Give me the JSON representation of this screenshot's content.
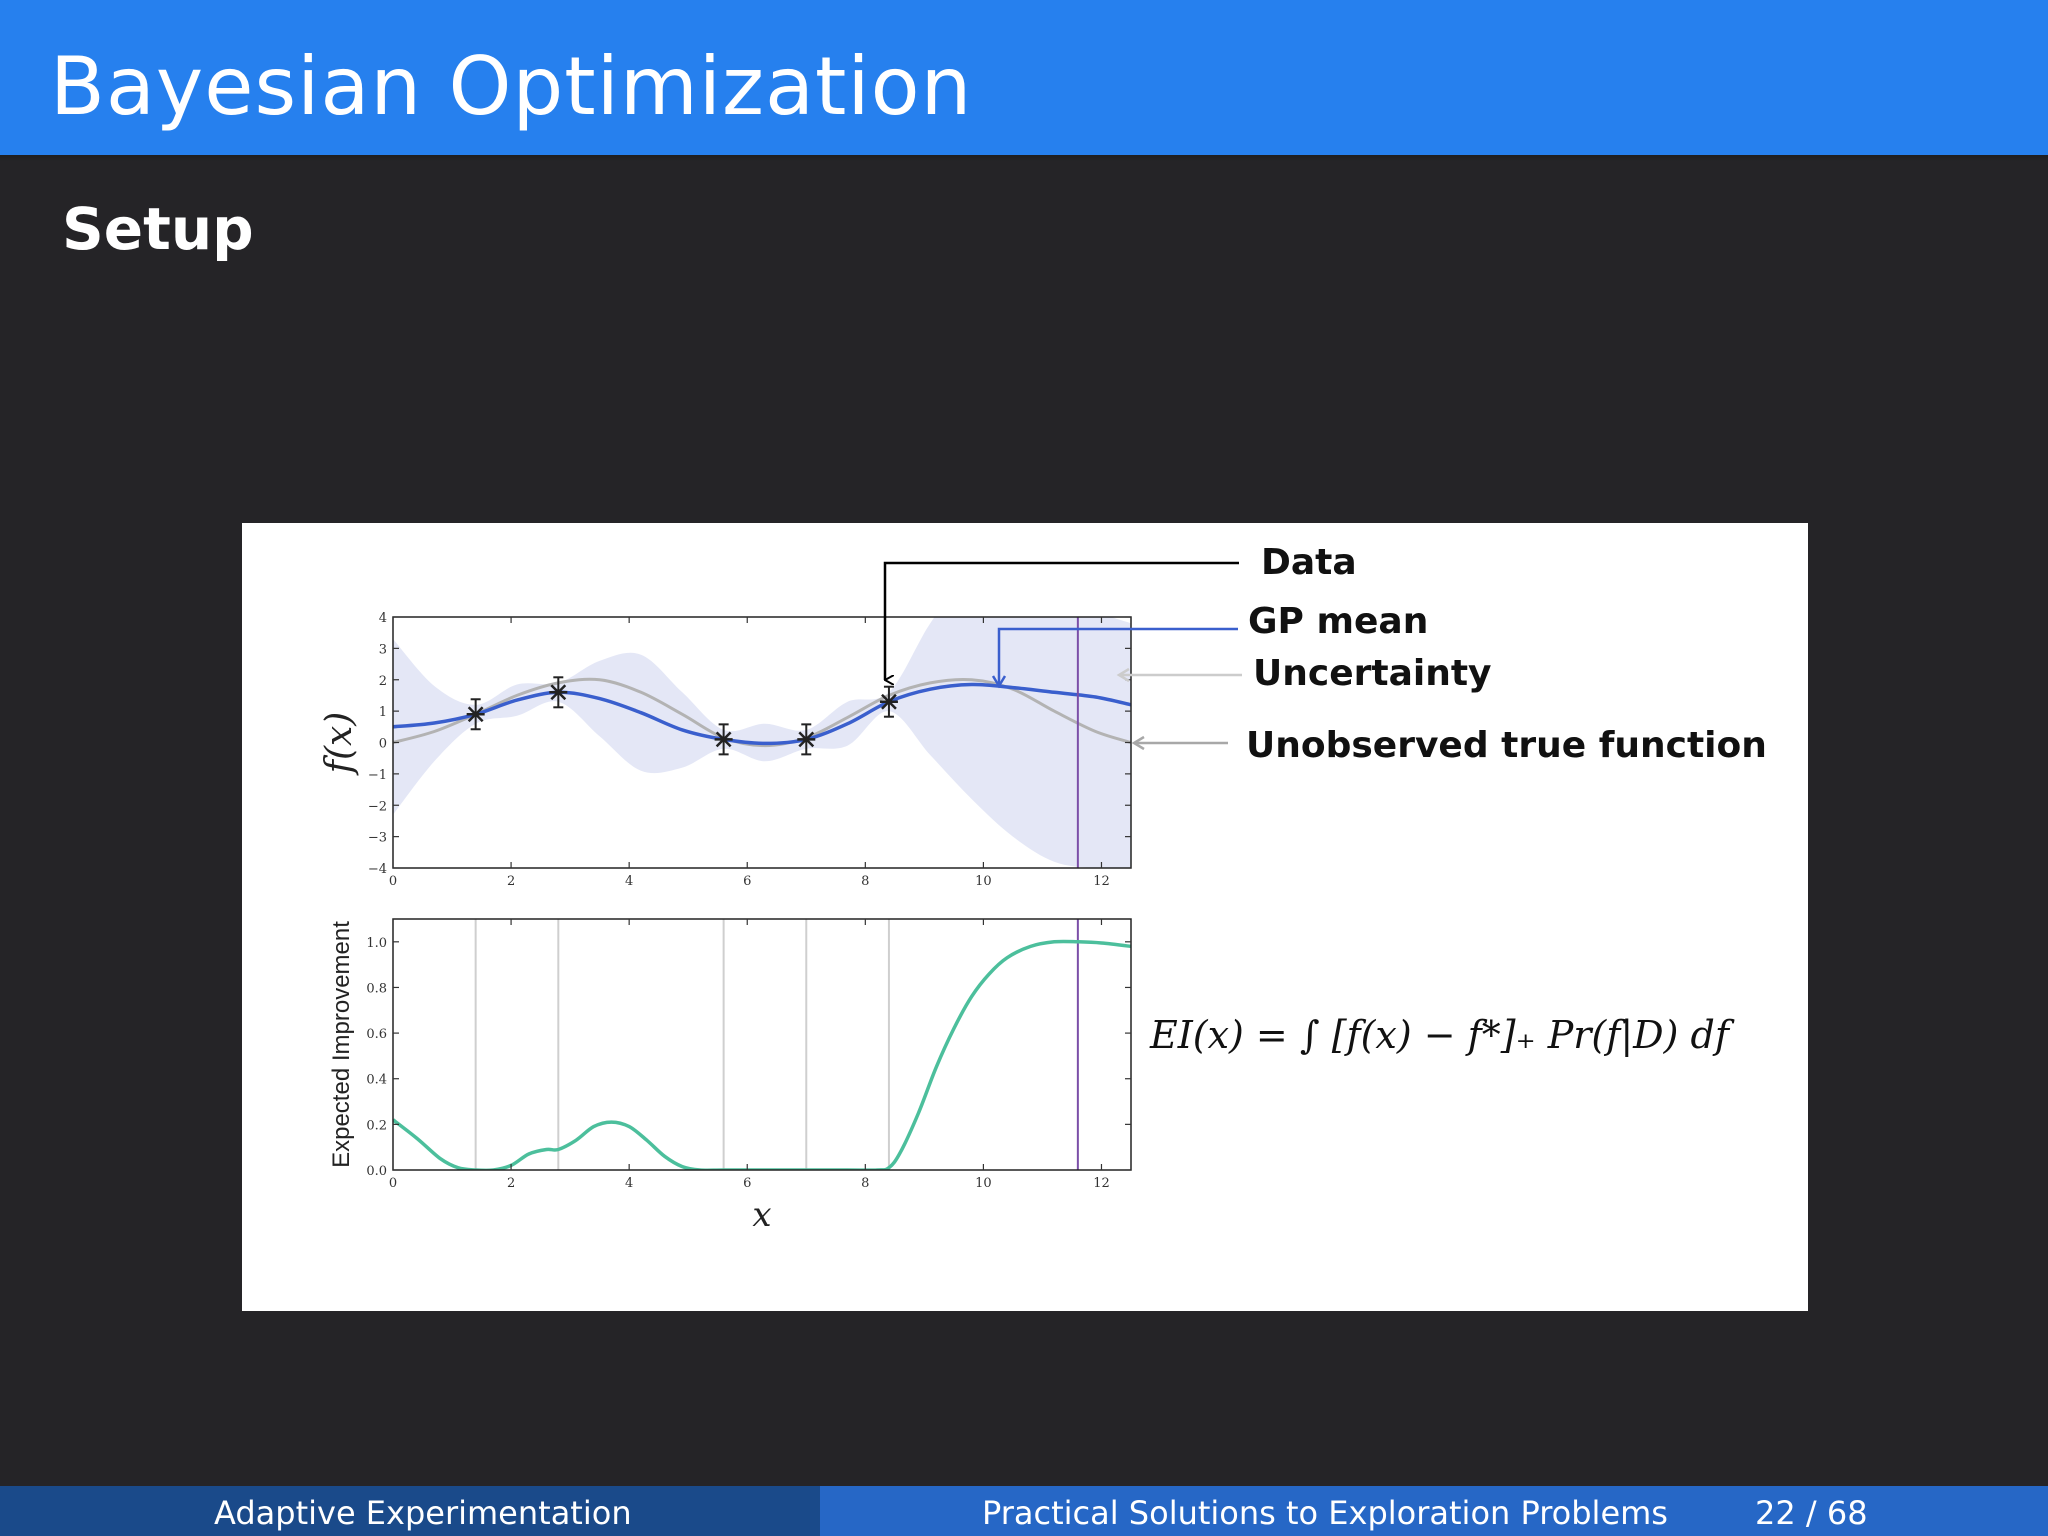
{
  "slide": {
    "title": "Bayesian Optimization",
    "subtitle": "Setup"
  },
  "footer": {
    "left": "Adaptive Experimentation",
    "center": "Practical Solutions to Exploration Problems",
    "page": "22 / 68"
  },
  "annotations": {
    "data": "Data",
    "gp_mean": "GP mean",
    "uncertainty": "Uncertainty",
    "true_function": "Unobserved true function"
  },
  "equation": "EI(x) = ∫ [f(x) − f*]₊ Pr(f|D) df",
  "colors": {
    "title_bar": "#2680ee",
    "background": "#252427",
    "gp_mean": "#3a5fcd",
    "uncertainty": "#e3e6f6",
    "true_function": "#b3b3b3",
    "expected_improvement": "#4cbf9c",
    "candidate_line": "#7b4fa8"
  },
  "chart_data": [
    {
      "type": "line",
      "ylabel": "f(x)",
      "xlabel": "",
      "xlim": [
        0,
        12.5
      ],
      "ylim": [
        -4,
        4
      ],
      "xticks": [
        0,
        2,
        4,
        6,
        8,
        10,
        12
      ],
      "yticks": [
        4,
        3,
        2,
        1,
        0,
        -1,
        -2,
        -3,
        -4
      ],
      "observations": {
        "x": [
          1.4,
          2.8,
          5.6,
          7.0,
          8.4
        ],
        "y": [
          0.9,
          1.6,
          0.1,
          0.1,
          1.3
        ]
      },
      "series": [
        {
          "name": "GP mean",
          "x": [
            0,
            0.7,
            1.4,
            2.1,
            2.8,
            3.5,
            4.2,
            4.9,
            5.6,
            6.3,
            7.0,
            7.7,
            8.4,
            9.1,
            9.8,
            10.5,
            11.2,
            11.9,
            12.5
          ],
          "y": [
            0.5,
            0.62,
            0.9,
            1.35,
            1.6,
            1.4,
            0.95,
            0.4,
            0.1,
            -0.03,
            0.1,
            0.6,
            1.3,
            1.7,
            1.85,
            1.75,
            1.6,
            1.45,
            1.2
          ]
        },
        {
          "name": "Unobserved true function",
          "x": [
            0,
            0.7,
            1.4,
            2.1,
            2.8,
            3.5,
            4.2,
            4.9,
            5.6,
            6.3,
            7.0,
            7.7,
            8.4,
            9.1,
            9.8,
            10.5,
            11.2,
            11.9,
            12.5
          ],
          "y": [
            0.0,
            0.35,
            0.9,
            1.5,
            1.9,
            2.0,
            1.6,
            0.9,
            0.15,
            -0.1,
            0.15,
            0.8,
            1.5,
            1.9,
            2.0,
            1.7,
            1.0,
            0.35,
            0.0
          ]
        },
        {
          "name": "Uncertainty",
          "x": [
            0,
            0.7,
            1.4,
            2.1,
            2.8,
            3.5,
            4.2,
            4.9,
            5.6,
            6.3,
            7.0,
            7.7,
            8.4,
            9.1,
            9.8,
            10.5,
            11.2,
            11.9,
            12.5
          ],
          "upper": [
            3.3,
            1.8,
            1.2,
            1.85,
            1.9,
            2.6,
            2.8,
            1.6,
            0.4,
            0.6,
            0.4,
            1.3,
            1.6,
            3.8,
            5.5,
            5.6,
            5.0,
            4.2,
            3.8
          ],
          "lower": [
            -2.3,
            -0.6,
            0.6,
            0.85,
            1.3,
            0.2,
            -0.9,
            -0.8,
            -0.2,
            -0.6,
            -0.2,
            -0.1,
            1.0,
            -0.4,
            -1.8,
            -3.0,
            -3.8,
            -4.0,
            -4.0
          ]
        }
      ],
      "candidate_x": 11.6
    },
    {
      "type": "line",
      "ylabel": "Expected Improvement",
      "xlabel": "x",
      "xlim": [
        0,
        12.5
      ],
      "ylim": [
        0,
        1.1
      ],
      "xticks": [
        0,
        2,
        4,
        6,
        8,
        10,
        12
      ],
      "yticks": [
        1.0,
        0.8,
        0.6,
        0.4,
        0.2,
        0.0
      ],
      "observation_x": [
        1.4,
        2.8,
        5.6,
        7.0,
        8.4
      ],
      "series": [
        {
          "name": "Expected Improvement",
          "x": [
            0,
            0.4,
            0.8,
            1.1,
            1.4,
            1.7,
            2.0,
            2.3,
            2.6,
            2.8,
            3.1,
            3.4,
            3.7,
            4.0,
            4.3,
            4.6,
            4.9,
            5.2,
            5.6,
            6.3,
            7.0,
            7.7,
            8.2,
            8.4,
            8.6,
            8.9,
            9.2,
            9.5,
            9.8,
            10.1,
            10.4,
            10.8,
            11.2,
            11.6,
            12.0,
            12.5
          ],
          "y": [
            0.22,
            0.14,
            0.05,
            0.01,
            0.0,
            0.0,
            0.02,
            0.07,
            0.09,
            0.09,
            0.13,
            0.19,
            0.21,
            0.19,
            0.13,
            0.06,
            0.015,
            0.0,
            0.0,
            0.0,
            0.0,
            0.0,
            0.0,
            0.01,
            0.08,
            0.25,
            0.45,
            0.62,
            0.76,
            0.86,
            0.93,
            0.98,
            1.0,
            1.0,
            0.995,
            0.98
          ]
        }
      ],
      "candidate_x": 11.6
    }
  ]
}
